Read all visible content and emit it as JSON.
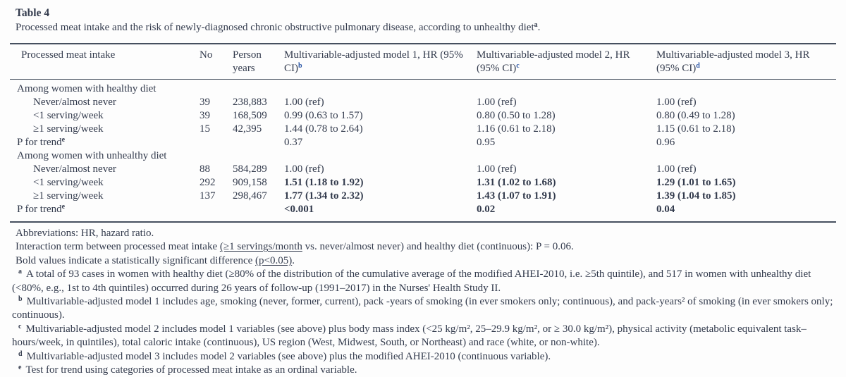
{
  "colors": {
    "text": "#333b4d",
    "superscript_blue": "#2a55a5",
    "rule": "#46505f"
  },
  "table": {
    "label": "Table 4",
    "caption": "Processed meat intake and the risk of newly-diagnosed chronic obstructive pulmonary disease, according to unhealthy diet",
    "caption_sup": "a",
    "caption_period": ".",
    "columns": [
      {
        "text": "Processed meat intake",
        "sup": ""
      },
      {
        "text": "No",
        "sup": ""
      },
      {
        "text": "Person years",
        "sup": ""
      },
      {
        "text": "Multivariable-adjusted model 1, HR (95% CI)",
        "sup": "b"
      },
      {
        "text": "Multivariable-adjusted model 2, HR (95% CI)",
        "sup": "c"
      },
      {
        "text": "Multivariable-adjusted model 3, HR (95% CI)",
        "sup": "d"
      }
    ],
    "rows": [
      {
        "label": "Among women with healthy diet",
        "sup": "",
        "no": "",
        "py": "",
        "m1": "",
        "m2": "",
        "m3": ""
      },
      {
        "label": "Never/almost never",
        "sup": "",
        "no": "39",
        "py": "238,883",
        "m1": "1.00 (ref)",
        "m2": "1.00 (ref)",
        "m3": "1.00 (ref)"
      },
      {
        "label": "<1 serving/week",
        "sup": "",
        "no": "39",
        "py": "168,509",
        "m1": "0.99 (0.63 to 1.57)",
        "m2": "0.80 (0.50 to 1.28)",
        "m3": "0.80 (0.49 to 1.28)"
      },
      {
        "label": "≥1 serving/week",
        "sup": "",
        "no": "15",
        "py": "42,395",
        "m1": "1.44 (0.78 to 2.64)",
        "m2": "1.16 (0.61 to 2.18)",
        "m3": "1.15 (0.61 to 2.18)"
      },
      {
        "label": "P for trend",
        "sup": "e",
        "no": "",
        "py": "",
        "m1": "0.37",
        "m2": "0.95",
        "m3": "0.96"
      },
      {
        "label": "Among women with unhealthy diet",
        "sup": "",
        "no": "",
        "py": "",
        "m1": "",
        "m2": "",
        "m3": ""
      },
      {
        "label": "Never/almost never",
        "sup": "",
        "no": "88",
        "py": "584,289",
        "m1": "1.00 (ref)",
        "m2": "1.00 (ref)",
        "m3": "1.00 (ref)"
      },
      {
        "label": "<1 serving/week",
        "sup": "",
        "no": "292",
        "py": "909,158",
        "m1": "1.51 (1.18 to 1.92)",
        "m2": "1.31 (1.02 to 1.68)",
        "m3": "1.29 (1.01 to 1.65)"
      },
      {
        "label": "≥1 serving/week",
        "sup": "",
        "no": "137",
        "py": "298,467",
        "m1": "1.77 (1.34 to 2.32)",
        "m2": "1.43 (1.07 to 1.91)",
        "m3": "1.39 (1.04 to 1.85)"
      },
      {
        "label": "P for trend",
        "sup": "e",
        "no": "",
        "py": "",
        "m1": "<0.001",
        "m2": "0.02",
        "m3": "0.04"
      }
    ]
  },
  "notes": {
    "abbreviations": "Abbreviations: HR, hazard ratio.",
    "interaction": {
      "pre": "Interaction term between processed meat intake ",
      "underlined": "(≥1 servings/month",
      "post": " vs. never/almost never) and healthy diet (continuous): P = 0.06."
    },
    "bold_note": {
      "pre": "Bold values indicate a statistically significant difference ",
      "underlined": "(p<0.05)",
      "post": "."
    },
    "lettered": [
      {
        "marker": "a",
        "text": "A total of 93 cases in women with healthy diet (≥80% of the distribution of the cumulative average of the modified AHEI-2010, i.e. ≥5th quintile), and 517 in women with unhealthy diet (<80%, e.g., 1st to 4th quintiles) occurred during 26 years of follow-up (1991–2017) in the Nurses' Health Study II."
      },
      {
        "marker": "b",
        "text": "Multivariable-adjusted model 1 includes age, smoking (never, former, current), pack -years of smoking (in ever smokers only; continuous), and pack-years² of smoking (in ever smokers only; continuous)."
      },
      {
        "marker": "c",
        "text": "Multivariable-adjusted model 2 includes model 1 variables (see above) plus body mass index (<25 kg/m², 25–29.9 kg/m², or ≥ 30.0 kg/m²), physical activity (metabolic equivalent task–hours/week, in quintiles), total caloric intake (continuous), US region (West, Midwest, South, or Northeast) and race (white, or non-white)."
      },
      {
        "marker": "d",
        "text": "Multivariable-adjusted model 3 includes model 2 variables (see above) plus the modified AHEI-2010 (continuous variable)."
      },
      {
        "marker": "e",
        "text": "Test for trend using categories of processed meat intake as an ordinal variable."
      }
    ]
  }
}
